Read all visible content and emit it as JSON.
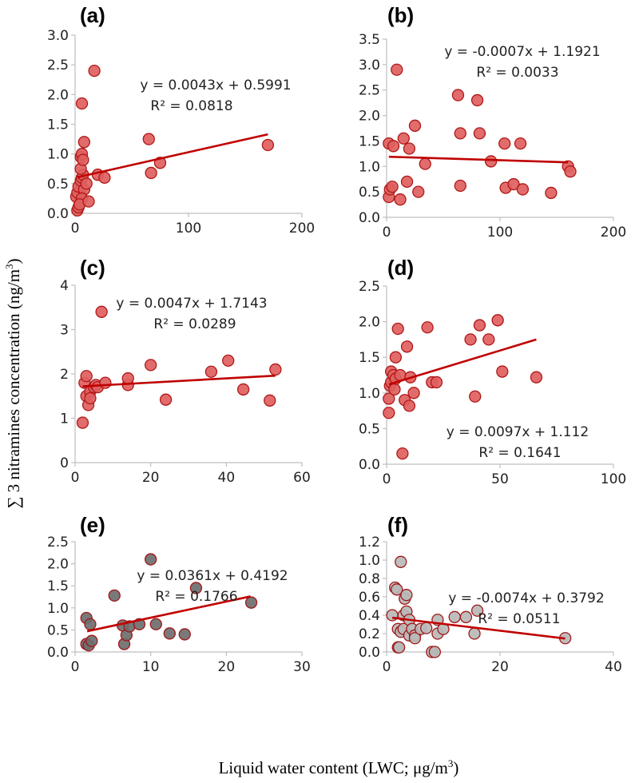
{
  "figure": {
    "ylabel_main": "∑ 3 nitramines concentration (ng/m",
    "ylabel_sup": "3",
    "ylabel_end": ")",
    "xlabel_main": "Liquid water content (LWC; μg/m",
    "xlabel_sup": "3",
    "xlabel_end": ")"
  },
  "colors": {
    "red_fill": "#e06060",
    "red_stroke": "#b01818",
    "dark_grey_fill": "#6e6e6e",
    "light_grey_fill": "#b8b8b8",
    "grey_stroke": "#a01818",
    "trend": "#c00000",
    "axis": "#bfbfbf"
  },
  "chart_data": [
    {
      "id": "a",
      "type": "scatter",
      "title": "(a)",
      "xlim": [
        0,
        200
      ],
      "xticks": [
        "0",
        "100",
        "200"
      ],
      "ylim": [
        0,
        3
      ],
      "yticks": [
        "0.0",
        "0.5",
        "1.0",
        "1.5",
        "2.0",
        "2.5",
        "3.0"
      ],
      "fill": "red",
      "eq": "y = 0.0043x + 0.5991",
      "r2": "R² = 0.0818",
      "trend": [
        [
          2,
          0.608
        ],
        [
          170,
          1.33
        ]
      ],
      "points": [
        [
          2,
          0.05
        ],
        [
          3,
          0.1
        ],
        [
          4,
          0.2
        ],
        [
          5,
          0.3
        ],
        [
          1,
          0.28
        ],
        [
          2,
          0.35
        ],
        [
          3,
          0.45
        ],
        [
          5,
          0.55
        ],
        [
          6,
          0.6
        ],
        [
          7,
          0.65
        ],
        [
          8,
          0.4
        ],
        [
          6,
          0.25
        ],
        [
          4,
          0.15
        ],
        [
          10,
          0.5
        ],
        [
          12,
          0.2
        ],
        [
          5,
          0.75
        ],
        [
          5,
          0.95
        ],
        [
          6,
          1.0
        ],
        [
          7,
          0.9
        ],
        [
          8,
          1.2
        ],
        [
          6,
          1.85
        ],
        [
          17,
          2.4
        ],
        [
          20,
          0.65
        ],
        [
          26,
          0.6
        ],
        [
          65,
          1.25
        ],
        [
          67,
          0.68
        ],
        [
          75,
          0.85
        ],
        [
          170,
          1.15
        ]
      ]
    },
    {
      "id": "b",
      "type": "scatter",
      "title": "(b)",
      "xlim": [
        0,
        200
      ],
      "xticks": [
        "0",
        "100",
        "200"
      ],
      "ylim": [
        0,
        3.5
      ],
      "yticks": [
        "0.0",
        "0.5",
        "1.0",
        "1.5",
        "2.0",
        "2.5",
        "3.0",
        "3.5"
      ],
      "fill": "red",
      "eq": "y = -0.0007x + 1.1921",
      "r2": "R² = 0.0033",
      "trend": [
        [
          2,
          1.19
        ],
        [
          160,
          1.08
        ]
      ],
      "points": [
        [
          2,
          0.4
        ],
        [
          3,
          0.55
        ],
        [
          5,
          0.6
        ],
        [
          2,
          1.45
        ],
        [
          6,
          1.4
        ],
        [
          9,
          2.9
        ],
        [
          12,
          0.35
        ],
        [
          15,
          1.55
        ],
        [
          18,
          0.7
        ],
        [
          20,
          1.35
        ],
        [
          25,
          1.8
        ],
        [
          28,
          0.5
        ],
        [
          34,
          1.05
        ],
        [
          63,
          2.4
        ],
        [
          65,
          1.65
        ],
        [
          65,
          0.62
        ],
        [
          80,
          2.3
        ],
        [
          82,
          1.65
        ],
        [
          92,
          1.1
        ],
        [
          104,
          1.45
        ],
        [
          105,
          0.58
        ],
        [
          112,
          0.65
        ],
        [
          118,
          1.45
        ],
        [
          120,
          0.55
        ],
        [
          145,
          0.48
        ],
        [
          160,
          1.0
        ],
        [
          162,
          0.9
        ]
      ]
    },
    {
      "id": "c",
      "type": "scatter",
      "title": "(c)",
      "xlim": [
        0,
        60
      ],
      "xticks": [
        "0",
        "20",
        "40",
        "60"
      ],
      "ylim": [
        0,
        4
      ],
      "yticks": [
        "0",
        "1",
        "2",
        "3",
        "4"
      ],
      "fill": "red",
      "eq": "y = 0.0047x + 1.7143",
      "r2": "R² = 0.0289",
      "trend": [
        [
          2,
          1.72
        ],
        [
          53,
          1.96
        ]
      ],
      "points": [
        [
          2,
          0.9
        ],
        [
          2.5,
          1.8
        ],
        [
          3,
          1.5
        ],
        [
          3.5,
          1.3
        ],
        [
          3,
          1.95
        ],
        [
          4,
          1.6
        ],
        [
          4,
          1.45
        ],
        [
          5,
          1.7
        ],
        [
          5.5,
          1.75
        ],
        [
          6,
          1.7
        ],
        [
          7,
          3.4
        ],
        [
          8,
          1.8
        ],
        [
          14,
          1.75
        ],
        [
          14,
          1.9
        ],
        [
          20,
          2.2
        ],
        [
          24,
          1.42
        ],
        [
          36,
          2.05
        ],
        [
          40.5,
          2.3
        ],
        [
          44.5,
          1.65
        ],
        [
          51.5,
          1.4
        ],
        [
          53,
          2.1
        ]
      ]
    },
    {
      "id": "d",
      "type": "scatter",
      "title": "(d)",
      "xlim": [
        0,
        100
      ],
      "xticks": [
        "0",
        "50",
        "100"
      ],
      "ylim": [
        0,
        2.5
      ],
      "yticks": [
        "0.0",
        "0.5",
        "1.0",
        "1.5",
        "2.0",
        "2.5"
      ],
      "fill": "red",
      "eq": "y = 0.0097x + 1.112",
      "r2": "R² = 0.1641",
      "trend": [
        [
          1,
          1.12
        ],
        [
          66,
          1.75
        ]
      ],
      "points": [
        [
          1,
          0.72
        ],
        [
          1,
          0.92
        ],
        [
          1.5,
          1.1
        ],
        [
          2,
          1.15
        ],
        [
          2,
          1.3
        ],
        [
          3,
          1.25
        ],
        [
          3.5,
          1.05
        ],
        [
          4,
          1.2
        ],
        [
          4,
          1.5
        ],
        [
          5,
          1.9
        ],
        [
          6,
          1.25
        ],
        [
          7,
          0.15
        ],
        [
          8,
          0.9
        ],
        [
          9,
          1.65
        ],
        [
          10,
          0.82
        ],
        [
          10.5,
          1.22
        ],
        [
          12,
          1.0
        ],
        [
          18,
          1.92
        ],
        [
          20,
          1.15
        ],
        [
          22,
          1.15
        ],
        [
          37,
          1.75
        ],
        [
          39,
          0.95
        ],
        [
          41,
          1.95
        ],
        [
          45,
          1.75
        ],
        [
          49,
          2.02
        ],
        [
          51,
          1.3
        ],
        [
          66,
          1.22
        ]
      ]
    },
    {
      "id": "e",
      "type": "scatter",
      "title": "(e)",
      "xlim": [
        0,
        30
      ],
      "xticks": [
        "0",
        "10",
        "20",
        "30"
      ],
      "ylim": [
        0,
        2.5
      ],
      "yticks": [
        "0.0",
        "0.5",
        "1.0",
        "1.5",
        "2.0",
        "2.5"
      ],
      "fill": "dark",
      "eq": "y = 0.0361x + 0.4192",
      "r2": "R² = 0.1766",
      "trend": [
        [
          1.6,
          0.47
        ],
        [
          23.2,
          1.26
        ]
      ],
      "points": [
        [
          1.5,
          0.77
        ],
        [
          1.5,
          0.18
        ],
        [
          1.8,
          0.15
        ],
        [
          2,
          0.63
        ],
        [
          2.2,
          0.25
        ],
        [
          5.2,
          1.28
        ],
        [
          6.3,
          0.6
        ],
        [
          6.5,
          0.18
        ],
        [
          6.8,
          0.38
        ],
        [
          7.2,
          0.58
        ],
        [
          8.5,
          0.63
        ],
        [
          10,
          2.1
        ],
        [
          10.7,
          0.63
        ],
        [
          12.5,
          0.42
        ],
        [
          14.5,
          0.4
        ],
        [
          16,
          1.45
        ],
        [
          23.3,
          1.12
        ]
      ]
    },
    {
      "id": "f",
      "type": "scatter",
      "title": "(f)",
      "xlim": [
        0,
        40
      ],
      "xticks": [
        "0",
        "20",
        "40"
      ],
      "ylim": [
        0,
        1.2
      ],
      "yticks": [
        "0.0",
        "0.2",
        "0.4",
        "0.6",
        "0.8",
        "1.0",
        "1.2"
      ],
      "fill": "light",
      "eq": "y = -0.0074x + 0.3792",
      "r2": "R² = 0.0511",
      "trend": [
        [
          1,
          0.372
        ],
        [
          31.5,
          0.146
        ]
      ],
      "points": [
        [
          1,
          0.4
        ],
        [
          1.5,
          0.7
        ],
        [
          1.8,
          0.68
        ],
        [
          2,
          0.25
        ],
        [
          2,
          0.05
        ],
        [
          2.2,
          0.05
        ],
        [
          2.5,
          0.98
        ],
        [
          2.5,
          0.22
        ],
        [
          3,
          0.4
        ],
        [
          3,
          0.25
        ],
        [
          3.2,
          0.58
        ],
        [
          3.5,
          0.62
        ],
        [
          3.5,
          0.44
        ],
        [
          4,
          0.35
        ],
        [
          4,
          0.18
        ],
        [
          4.5,
          0.25
        ],
        [
          5,
          0.18
        ],
        [
          5,
          0.15
        ],
        [
          6,
          0.25
        ],
        [
          7,
          0.26
        ],
        [
          8,
          0.0
        ],
        [
          8.5,
          0.0
        ],
        [
          9,
          0.35
        ],
        [
          9,
          0.2
        ],
        [
          10,
          0.25
        ],
        [
          12,
          0.38
        ],
        [
          14,
          0.38
        ],
        [
          15.5,
          0.2
        ],
        [
          16,
          0.45
        ],
        [
          31.5,
          0.15
        ]
      ]
    }
  ]
}
